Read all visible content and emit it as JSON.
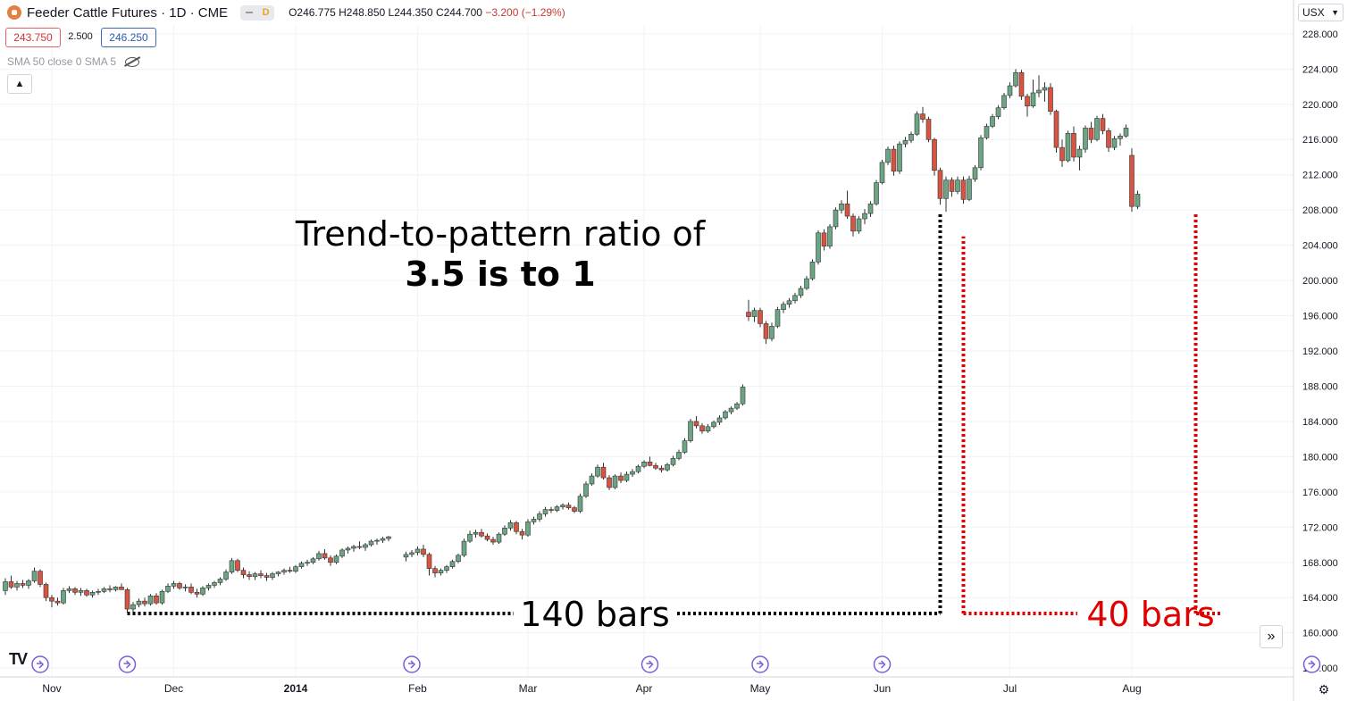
{
  "header": {
    "title": "Feeder Cattle Futures · 1D · CME",
    "pill_label": "D",
    "ohlc_o": "O246.775",
    "ohlc_h": "H248.850",
    "ohlc_l": "L244.350",
    "ohlc_c": "C244.700",
    "ohlc_change": "−3.200 (−1.29%)"
  },
  "trade": {
    "sell_price": "243.750",
    "spread": "2.500",
    "buy_price": "246.250"
  },
  "indicator": {
    "label": "SMA 50 close 0 SMA 5"
  },
  "currency": {
    "label": "USX"
  },
  "annotations": {
    "title_line1": "Trend-to-pattern ratio of",
    "title_line2": "3.5 is to 1",
    "label_140": "140 bars",
    "label_40": "40 bars"
  },
  "chart_data": {
    "type": "candlestick",
    "title": "Feeder Cattle Futures · 1D · CME",
    "y_axis": {
      "ylim": [
        155,
        229
      ],
      "ticks": [
        156,
        160,
        164,
        168,
        172,
        176,
        180,
        184,
        188,
        192,
        196,
        200,
        204,
        208,
        212,
        216,
        220,
        224,
        228
      ],
      "tick_labels": [
        "156.000",
        "160.000",
        "164.000",
        "168.000",
        "172.000",
        "176.000",
        "180.000",
        "184.000",
        "188.000",
        "192.000",
        "196.000",
        "200.000",
        "204.000",
        "208.000",
        "212.000",
        "216.000",
        "220.000",
        "224.000",
        "228.000"
      ]
    },
    "x_axis": {
      "tick_labels": [
        "Nov",
        "Dec",
        "2014",
        "Feb",
        "Mar",
        "Apr",
        "May",
        "Jun",
        "Jul",
        "Aug"
      ],
      "tick_index": [
        8,
        29,
        50,
        71,
        90,
        110,
        130,
        151,
        173,
        194
      ]
    },
    "grid": true,
    "colors": {
      "up": "#6ba583",
      "down": "#d75442",
      "wick": "#333333",
      "ann_black": "#000000",
      "ann_red": "#e00000",
      "event": "#7b5cd6"
    },
    "events_index": [
      6,
      21,
      70,
      111,
      130,
      151,
      225
    ],
    "candles": [
      [
        164.8,
        166.2,
        164.3,
        165.8
      ],
      [
        165.8,
        166.5,
        165.0,
        165.2
      ],
      [
        165.2,
        165.9,
        164.8,
        165.6
      ],
      [
        165.6,
        166.0,
        165.1,
        165.4
      ],
      [
        165.4,
        166.1,
        165.0,
        165.9
      ],
      [
        165.9,
        167.4,
        165.7,
        167.0
      ],
      [
        167.0,
        167.2,
        165.2,
        165.5
      ],
      [
        165.5,
        165.7,
        163.6,
        164.0
      ],
      [
        164.0,
        164.3,
        162.9,
        163.6
      ],
      [
        163.6,
        164.0,
        163.1,
        163.4
      ],
      [
        163.4,
        165.1,
        163.2,
        164.8
      ],
      [
        164.8,
        165.3,
        164.5,
        165.0
      ],
      [
        165.0,
        165.2,
        164.3,
        164.6
      ],
      [
        164.6,
        165.1,
        164.2,
        164.8
      ],
      [
        164.8,
        165.0,
        164.1,
        164.3
      ],
      [
        164.3,
        164.8,
        164.0,
        164.6
      ],
      [
        164.6,
        165.0,
        164.3,
        164.7
      ],
      [
        164.7,
        165.2,
        164.5,
        165.0
      ],
      [
        165.0,
        165.4,
        164.6,
        164.9
      ],
      [
        164.9,
        165.3,
        164.7,
        165.2
      ],
      [
        165.2,
        165.6,
        164.9,
        164.9
      ],
      [
        164.9,
        165.1,
        162.3,
        162.7
      ],
      [
        162.7,
        163.5,
        162.4,
        163.2
      ],
      [
        163.2,
        163.9,
        162.9,
        163.6
      ],
      [
        163.6,
        164.0,
        163.0,
        163.3
      ],
      [
        163.3,
        164.4,
        163.1,
        164.2
      ],
      [
        164.2,
        164.5,
        163.2,
        163.4
      ],
      [
        163.4,
        164.9,
        163.2,
        164.7
      ],
      [
        164.7,
        165.6,
        164.5,
        165.3
      ],
      [
        165.3,
        165.9,
        165.0,
        165.6
      ],
      [
        165.6,
        165.8,
        164.9,
        165.1
      ],
      [
        165.1,
        165.5,
        164.7,
        165.2
      ],
      [
        165.2,
        165.6,
        164.4,
        164.6
      ],
      [
        164.6,
        165.0,
        164.0,
        164.4
      ],
      [
        164.4,
        165.3,
        164.2,
        165.1
      ],
      [
        165.1,
        165.6,
        164.8,
        165.4
      ],
      [
        165.4,
        165.9,
        165.1,
        165.7
      ],
      [
        165.7,
        166.3,
        165.4,
        166.1
      ],
      [
        166.1,
        167.2,
        165.9,
        166.9
      ],
      [
        166.9,
        168.5,
        166.7,
        168.2
      ],
      [
        168.2,
        168.4,
        166.9,
        167.1
      ],
      [
        167.1,
        167.4,
        166.2,
        166.6
      ],
      [
        166.6,
        167.0,
        166.0,
        166.4
      ],
      [
        166.4,
        166.9,
        166.0,
        166.7
      ],
      [
        166.7,
        167.1,
        166.2,
        166.5
      ],
      [
        166.5,
        166.8,
        165.9,
        166.3
      ],
      [
        166.3,
        166.9,
        166.0,
        166.7
      ],
      [
        166.7,
        167.0,
        166.4,
        166.9
      ],
      [
        166.9,
        167.3,
        166.6,
        167.1
      ],
      [
        167.1,
        167.5,
        166.8,
        167.0
      ],
      [
        167.0,
        167.7,
        166.8,
        167.5
      ],
      [
        167.5,
        168.1,
        167.3,
        167.9
      ],
      [
        167.9,
        168.3,
        167.6,
        168.0
      ],
      [
        168.0,
        168.6,
        167.8,
        168.4
      ],
      [
        168.4,
        169.3,
        168.2,
        169.0
      ],
      [
        169.0,
        169.5,
        168.3,
        168.5
      ],
      [
        168.5,
        168.8,
        167.6,
        168.0
      ],
      [
        168.0,
        168.9,
        167.8,
        168.7
      ],
      [
        168.7,
        169.6,
        168.5,
        169.4
      ],
      [
        169.4,
        169.8,
        169.0,
        169.6
      ],
      [
        169.6,
        170.0,
        169.2,
        169.8
      ],
      [
        169.8,
        170.4,
        169.5,
        169.7
      ],
      [
        169.7,
        170.2,
        169.3,
        170.0
      ],
      [
        170.0,
        170.6,
        169.8,
        170.4
      ],
      [
        170.4,
        170.7,
        170.0,
        170.5
      ],
      [
        170.5,
        170.9,
        170.2,
        170.7
      ],
      [
        170.7,
        171.0,
        170.4,
        170.9
      ],
      [
        168.6,
        169.2,
        168.1,
        168.9
      ],
      [
        168.9,
        169.4,
        168.6,
        169.1
      ],
      [
        169.1,
        169.8,
        168.8,
        169.5
      ],
      [
        169.5,
        170.0,
        168.6,
        168.9
      ],
      [
        168.9,
        169.1,
        166.5,
        167.3
      ],
      [
        167.3,
        167.6,
        166.3,
        166.8
      ],
      [
        166.8,
        167.3,
        166.5,
        167.1
      ],
      [
        167.1,
        167.7,
        166.8,
        167.5
      ],
      [
        167.5,
        168.3,
        167.3,
        168.1
      ],
      [
        168.1,
        169.0,
        167.9,
        168.8
      ],
      [
        168.8,
        170.7,
        168.6,
        170.4
      ],
      [
        170.4,
        171.6,
        170.2,
        171.2
      ],
      [
        171.2,
        171.7,
        170.8,
        171.4
      ],
      [
        171.4,
        171.8,
        170.8,
        171.0
      ],
      [
        171.0,
        171.3,
        170.4,
        170.6
      ],
      [
        170.6,
        170.9,
        170.0,
        170.3
      ],
      [
        170.3,
        171.4,
        170.1,
        171.2
      ],
      [
        171.2,
        172.2,
        171.0,
        171.9
      ],
      [
        171.9,
        172.8,
        171.6,
        172.5
      ],
      [
        172.5,
        172.7,
        171.2,
        171.5
      ],
      [
        171.5,
        171.8,
        170.6,
        171.1
      ],
      [
        171.1,
        172.9,
        170.9,
        172.6
      ],
      [
        172.6,
        173.2,
        172.3,
        172.9
      ],
      [
        172.9,
        173.8,
        172.6,
        173.5
      ],
      [
        173.5,
        174.3,
        173.2,
        174.0
      ],
      [
        174.0,
        174.3,
        173.6,
        173.9
      ],
      [
        173.9,
        174.5,
        173.7,
        174.3
      ],
      [
        174.3,
        174.7,
        174.0,
        174.5
      ],
      [
        174.5,
        174.8,
        174.0,
        174.2
      ],
      [
        174.2,
        174.4,
        173.6,
        173.8
      ],
      [
        173.8,
        175.8,
        173.6,
        175.5
      ],
      [
        175.5,
        177.2,
        175.3,
        176.9
      ],
      [
        176.9,
        178.1,
        176.7,
        177.8
      ],
      [
        177.8,
        179.1,
        177.6,
        178.8
      ],
      [
        178.8,
        179.3,
        177.4,
        177.6
      ],
      [
        177.6,
        177.9,
        176.2,
        176.5
      ],
      [
        176.5,
        178.0,
        176.3,
        177.8
      ],
      [
        177.8,
        178.2,
        177.0,
        177.3
      ],
      [
        177.3,
        178.3,
        177.1,
        178.0
      ],
      [
        178.0,
        178.6,
        177.7,
        178.3
      ],
      [
        178.3,
        179.1,
        178.1,
        178.9
      ],
      [
        178.9,
        179.6,
        178.7,
        179.4
      ],
      [
        179.4,
        180.0,
        178.9,
        179.0
      ],
      [
        179.0,
        179.3,
        178.5,
        178.7
      ],
      [
        178.7,
        179.0,
        178.2,
        178.5
      ],
      [
        178.5,
        179.3,
        178.3,
        179.1
      ],
      [
        179.1,
        180.1,
        178.9,
        179.8
      ],
      [
        179.8,
        180.8,
        179.6,
        180.5
      ],
      [
        180.5,
        182.1,
        180.3,
        181.8
      ],
      [
        181.8,
        184.3,
        181.6,
        184.0
      ],
      [
        184.0,
        184.6,
        183.2,
        183.5
      ],
      [
        183.5,
        183.8,
        182.6,
        182.9
      ],
      [
        182.9,
        183.7,
        182.7,
        183.4
      ],
      [
        183.4,
        184.1,
        183.2,
        183.9
      ],
      [
        183.9,
        184.7,
        183.6,
        184.4
      ],
      [
        184.4,
        185.3,
        184.2,
        185.1
      ],
      [
        185.1,
        185.7,
        184.8,
        185.5
      ],
      [
        185.5,
        186.2,
        185.3,
        186.0
      ],
      [
        186.0,
        188.2,
        185.8,
        187.9
      ],
      [
        196.4,
        197.8,
        195.4,
        195.9
      ],
      [
        195.9,
        196.9,
        195.3,
        196.6
      ],
      [
        196.6,
        196.9,
        194.7,
        195.1
      ],
      [
        195.1,
        195.4,
        192.8,
        193.4
      ],
      [
        193.4,
        195.2,
        193.1,
        194.8
      ],
      [
        194.8,
        197.0,
        194.6,
        196.7
      ],
      [
        196.7,
        197.6,
        196.3,
        197.3
      ],
      [
        197.3,
        198.0,
        196.9,
        197.7
      ],
      [
        197.7,
        198.6,
        197.4,
        198.3
      ],
      [
        198.3,
        199.4,
        198.0,
        199.1
      ],
      [
        199.1,
        200.5,
        198.9,
        200.2
      ],
      [
        200.2,
        202.4,
        200.0,
        202.1
      ],
      [
        202.1,
        205.7,
        201.8,
        205.4
      ],
      [
        205.4,
        205.8,
        203.4,
        203.9
      ],
      [
        203.9,
        206.4,
        203.6,
        206.1
      ],
      [
        206.1,
        208.3,
        205.8,
        208.0
      ],
      [
        208.0,
        209.1,
        207.6,
        208.7
      ],
      [
        208.7,
        210.2,
        207.0,
        207.3
      ],
      [
        207.3,
        207.6,
        205.0,
        205.6
      ],
      [
        205.6,
        207.3,
        205.3,
        207.0
      ],
      [
        207.0,
        208.1,
        206.4,
        207.6
      ],
      [
        207.6,
        209.0,
        207.2,
        208.7
      ],
      [
        208.7,
        211.4,
        208.5,
        211.1
      ],
      [
        211.1,
        213.7,
        210.9,
        213.4
      ],
      [
        213.4,
        215.2,
        213.1,
        214.9
      ],
      [
        214.9,
        215.3,
        211.9,
        212.4
      ],
      [
        212.4,
        215.8,
        212.1,
        215.5
      ],
      [
        215.5,
        216.3,
        215.1,
        215.9
      ],
      [
        215.9,
        216.9,
        215.6,
        216.6
      ],
      [
        216.6,
        219.2,
        216.4,
        218.9
      ],
      [
        218.9,
        219.7,
        217.9,
        218.3
      ],
      [
        218.3,
        218.6,
        215.7,
        216.0
      ],
      [
        216.0,
        216.2,
        211.9,
        212.5
      ],
      [
        212.5,
        212.8,
        208.6,
        209.3
      ],
      [
        209.3,
        211.8,
        207.8,
        211.4
      ],
      [
        211.4,
        211.7,
        209.5,
        210.1
      ],
      [
        210.1,
        211.8,
        209.8,
        211.4
      ],
      [
        211.4,
        211.8,
        208.7,
        209.2
      ],
      [
        209.2,
        211.9,
        209.0,
        211.5
      ],
      [
        211.5,
        213.1,
        211.2,
        212.8
      ],
      [
        212.8,
        216.5,
        212.5,
        216.2
      ],
      [
        216.2,
        217.8,
        216.0,
        217.5
      ],
      [
        217.5,
        218.9,
        217.3,
        218.6
      ],
      [
        218.6,
        219.9,
        218.3,
        219.6
      ],
      [
        219.6,
        221.3,
        219.4,
        221.0
      ],
      [
        221.0,
        222.5,
        220.7,
        222.1
      ],
      [
        222.1,
        224.0,
        221.9,
        223.6
      ],
      [
        223.6,
        223.9,
        220.5,
        220.9
      ],
      [
        220.9,
        221.2,
        218.6,
        219.8
      ],
      [
        219.8,
        222.8,
        219.6,
        221.3
      ],
      [
        221.3,
        223.3,
        220.8,
        221.6
      ],
      [
        221.6,
        222.5,
        220.3,
        221.9
      ],
      [
        221.9,
        222.4,
        218.8,
        219.2
      ],
      [
        219.2,
        219.4,
        214.5,
        215.1
      ],
      [
        215.1,
        216.0,
        212.9,
        213.6
      ],
      [
        213.6,
        217.0,
        213.4,
        216.7
      ],
      [
        216.7,
        217.5,
        213.5,
        214.0
      ],
      [
        214.0,
        215.3,
        212.5,
        214.9
      ],
      [
        214.9,
        217.6,
        214.5,
        217.3
      ],
      [
        217.3,
        218.0,
        215.6,
        216.0
      ],
      [
        216.0,
        218.7,
        215.8,
        218.4
      ],
      [
        218.4,
        218.9,
        216.6,
        217.0
      ],
      [
        217.0,
        217.3,
        214.6,
        215.1
      ],
      [
        215.1,
        216.4,
        214.8,
        216.1
      ],
      [
        216.1,
        216.7,
        215.3,
        216.4
      ],
      [
        216.4,
        217.7,
        216.2,
        217.3
      ],
      [
        214.2,
        215.0,
        207.8,
        208.4
      ],
      [
        208.4,
        210.2,
        208.1,
        209.8
      ]
    ],
    "candle_index": [
      0,
      1,
      2,
      3,
      4,
      5,
      6,
      7,
      8,
      9,
      10,
      11,
      12,
      13,
      14,
      15,
      16,
      17,
      18,
      19,
      20,
      21,
      22,
      23,
      24,
      25,
      26,
      27,
      28,
      29,
      30,
      31,
      32,
      33,
      34,
      35,
      36,
      37,
      38,
      39,
      40,
      41,
      42,
      43,
      44,
      45,
      46,
      47,
      48,
      49,
      50,
      51,
      52,
      53,
      54,
      55,
      56,
      57,
      58,
      59,
      60,
      61,
      62,
      63,
      64,
      65,
      66,
      69,
      70,
      71,
      72,
      73,
      74,
      75,
      76,
      77,
      78,
      79,
      80,
      81,
      82,
      83,
      84,
      85,
      86,
      87,
      88,
      89,
      90,
      91,
      92,
      93,
      94,
      95,
      96,
      97,
      98,
      99,
      100,
      101,
      102,
      103,
      104,
      105,
      106,
      107,
      108,
      109,
      110,
      111,
      112,
      113,
      114,
      115,
      116,
      117,
      118,
      119,
      120,
      121,
      122,
      123,
      124,
      125,
      126,
      127,
      128,
      129,
      130,
      131,
      132,
      133,
      134,
      135,
      136,
      137,
      138,
      139,
      140,
      141,
      142,
      143,
      144,
      145,
      146,
      147,
      148,
      149,
      150,
      151,
      152,
      153,
      154,
      155,
      156,
      157,
      158,
      159,
      160,
      161,
      162,
      163,
      164,
      165,
      166,
      167,
      168,
      169,
      170,
      171,
      172,
      173,
      174,
      175,
      176,
      177,
      178,
      179,
      180,
      181,
      182,
      183,
      184,
      185,
      186,
      187,
      188,
      189,
      190,
      191,
      192,
      193,
      194,
      195,
      196,
      197,
      198,
      199,
      200,
      201,
      202,
      203,
      204,
      205,
      206,
      207,
      208,
      209,
      210,
      211,
      212,
      213,
      214,
      215,
      216,
      217,
      218,
      219,
      220,
      221,
      222,
      223,
      224,
      225
    ],
    "annotation_lines": {
      "black": {
        "x_start_index": 21,
        "x_end_index": 161,
        "y_value": 162.2,
        "y_top_value": 207.6
      },
      "red": {
        "x_start_index": 165,
        "x_end_index": 205,
        "y_value": 162.2,
        "left_top_value": 205.0,
        "right_top_value": 207.6
      }
    }
  }
}
